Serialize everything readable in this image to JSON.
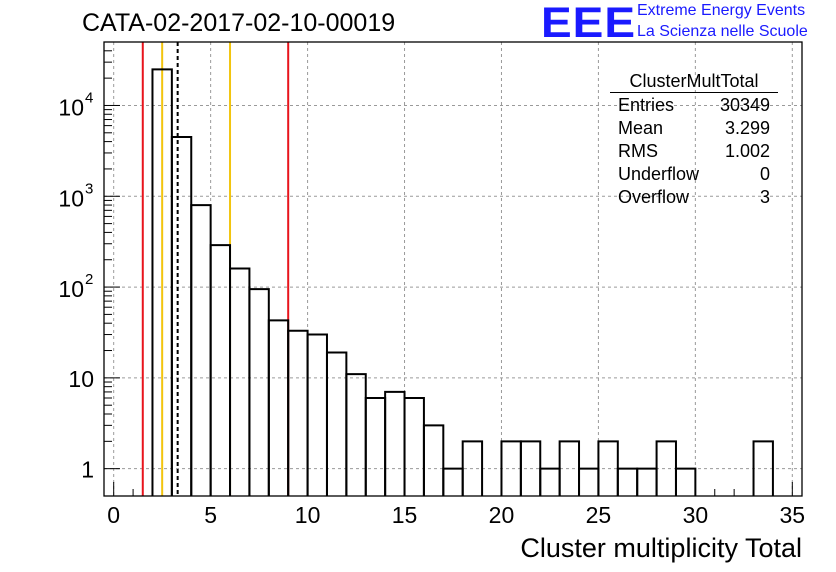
{
  "title": "CATA-02-2017-02-10-00019",
  "logo": {
    "mark": "EEE",
    "line1": "Extreme Energy Events",
    "line2": "La Scienza nelle Scuole"
  },
  "stats": {
    "title": "ClusterMultTotal",
    "rows": [
      {
        "label": "Entries",
        "value": "30349"
      },
      {
        "label": "Mean",
        "value": "3.299"
      },
      {
        "label": "RMS",
        "value": "1.002"
      },
      {
        "label": "Underflow",
        "value": "0"
      },
      {
        "label": "Overflow",
        "value": "3"
      }
    ]
  },
  "chart_data": {
    "type": "histogram",
    "title": "CATA-02-2017-02-10-00019",
    "xlabel": "Cluster multiplicity Total",
    "ylabel": "",
    "xlim": [
      -0.5,
      35.5
    ],
    "ylim": [
      0.5,
      50000
    ],
    "yscale": "log",
    "grid": true,
    "bin_width": 1,
    "bins": [
      {
        "x": 2.5,
        "y": 25000
      },
      {
        "x": 3.5,
        "y": 4500
      },
      {
        "x": 4.5,
        "y": 800
      },
      {
        "x": 5.5,
        "y": 290
      },
      {
        "x": 6.5,
        "y": 160
      },
      {
        "x": 7.5,
        "y": 95
      },
      {
        "x": 8.5,
        "y": 43
      },
      {
        "x": 9.5,
        "y": 33
      },
      {
        "x": 10.5,
        "y": 30
      },
      {
        "x": 11.5,
        "y": 19
      },
      {
        "x": 12.5,
        "y": 11
      },
      {
        "x": 13.5,
        "y": 6
      },
      {
        "x": 14.5,
        "y": 7
      },
      {
        "x": 15.5,
        "y": 6
      },
      {
        "x": 16.5,
        "y": 3
      },
      {
        "x": 17.5,
        "y": 1
      },
      {
        "x": 18.5,
        "y": 2
      },
      {
        "x": 19.5,
        "y": 0
      },
      {
        "x": 20.5,
        "y": 2
      },
      {
        "x": 21.5,
        "y": 2
      },
      {
        "x": 22.5,
        "y": 1
      },
      {
        "x": 23.5,
        "y": 2
      },
      {
        "x": 24.5,
        "y": 1
      },
      {
        "x": 25.5,
        "y": 2
      },
      {
        "x": 26.5,
        "y": 1
      },
      {
        "x": 27.5,
        "y": 1
      },
      {
        "x": 28.5,
        "y": 2
      },
      {
        "x": 29.5,
        "y": 1
      },
      {
        "x": 30.5,
        "y": 0
      },
      {
        "x": 31.5,
        "y": 0
      },
      {
        "x": 32.5,
        "y": 0
      },
      {
        "x": 33.5,
        "y": 2
      }
    ],
    "x_ticks": [
      0,
      5,
      10,
      15,
      20,
      25,
      30,
      35
    ],
    "y_ticks": [
      {
        "value": 1,
        "label": "1"
      },
      {
        "value": 10,
        "label": "10"
      },
      {
        "value": 100,
        "label": "10",
        "exp": "2"
      },
      {
        "value": 1000,
        "label": "10",
        "exp": "3"
      },
      {
        "value": 10000,
        "label": "10",
        "exp": "4"
      }
    ],
    "vlines": [
      {
        "x": 1.5,
        "color": "#e8141c",
        "style": "solid"
      },
      {
        "x": 2.5,
        "color": "#f2c40e",
        "style": "solid"
      },
      {
        "x": 3.299,
        "color": "#000000",
        "style": "dashed"
      },
      {
        "x": 6.0,
        "color": "#f2c40e",
        "style": "solid"
      },
      {
        "x": 9.0,
        "color": "#e8141c",
        "style": "solid"
      }
    ]
  }
}
